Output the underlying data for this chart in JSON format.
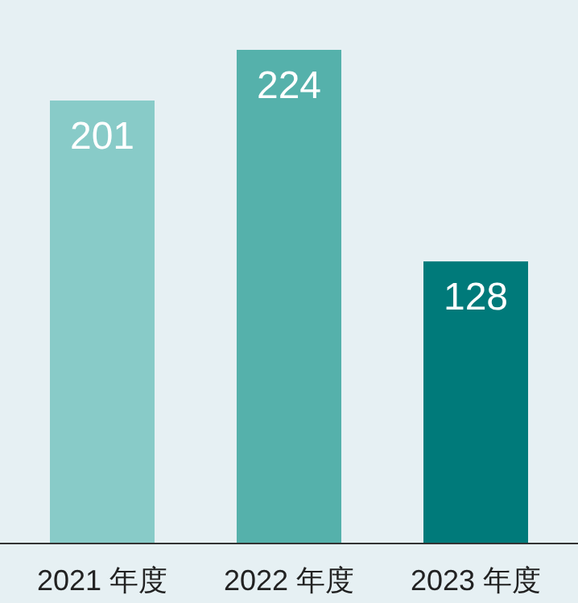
{
  "chart_data": {
    "type": "bar",
    "categories": [
      "2021 年度",
      "2022 年度",
      "2023 年度"
    ],
    "values": [
      201,
      224,
      128
    ],
    "colors": [
      "#88cbc8",
      "#55b1ab",
      "#007a7a"
    ],
    "data_labels": true
  }
}
